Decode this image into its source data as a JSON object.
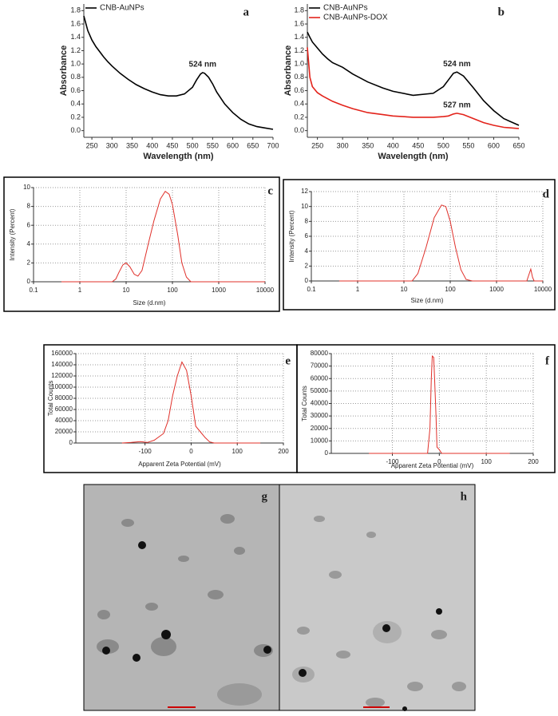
{
  "chart_data": [
    {
      "type": "line",
      "panel_label": "a",
      "xlabel": "Wavelength (nm)",
      "ylabel": "Absorbance",
      "grid": false,
      "log_scale": false,
      "legend": "upper left",
      "x": [
        230,
        240,
        250,
        260,
        270,
        280,
        290,
        300,
        320,
        340,
        360,
        380,
        400,
        420,
        440,
        460,
        480,
        500,
        510,
        520,
        525,
        530,
        540,
        550,
        560,
        580,
        600,
        620,
        640,
        660,
        680,
        700
      ],
      "series": [
        {
          "name": "CNB-AuNPs",
          "color": "#000000",
          "peak_label": "524 nm",
          "values": [
            1.72,
            1.5,
            1.36,
            1.26,
            1.18,
            1.1,
            1.03,
            0.97,
            0.86,
            0.77,
            0.69,
            0.63,
            0.58,
            0.54,
            0.52,
            0.52,
            0.55,
            0.65,
            0.76,
            0.85,
            0.87,
            0.86,
            0.8,
            0.7,
            0.58,
            0.4,
            0.27,
            0.17,
            0.1,
            0.06,
            0.04,
            0.02
          ]
        }
      ],
      "xlim": [
        230,
        700
      ],
      "xticks": [
        250,
        300,
        350,
        400,
        450,
        500,
        550,
        600,
        650,
        700
      ],
      "ylim": [
        -0.1,
        1.9
      ],
      "yticks": [
        {
          "value": 0,
          "label": "0.0"
        },
        0.2,
        0.4,
        0.6,
        0.8,
        {
          "value": 1,
          "label": "1.0"
        },
        1.2,
        1.4,
        1.6,
        1.8
      ]
    },
    {
      "type": "line",
      "panel_label": "b",
      "xlabel": "Wavelength (nm)",
      "ylabel": "Absorbance",
      "grid": false,
      "log_scale": false,
      "legend": "upper left",
      "x": [
        230,
        235,
        240,
        250,
        260,
        270,
        280,
        300,
        320,
        350,
        380,
        400,
        440,
        480,
        500,
        510,
        520,
        527,
        540,
        560,
        580,
        600,
        620,
        650
      ],
      "series": [
        {
          "name": "CNB-AuNPs",
          "color": "#000000",
          "peak_label": "524 nm",
          "values": [
            1.48,
            1.4,
            1.33,
            1.24,
            1.15,
            1.08,
            1.02,
            0.95,
            0.85,
            0.73,
            0.64,
            0.59,
            0.53,
            0.56,
            0.66,
            0.76,
            0.86,
            0.88,
            0.82,
            0.64,
            0.45,
            0.3,
            0.18,
            0.08
          ]
        },
        {
          "name": "CNB-AuNPs-DOX",
          "color": "#e3231b",
          "peak_label": "527 nm",
          "values": [
            1.25,
            0.8,
            0.66,
            0.57,
            0.52,
            0.48,
            0.44,
            0.38,
            0.33,
            0.27,
            0.24,
            0.22,
            0.2,
            0.2,
            0.21,
            0.22,
            0.25,
            0.26,
            0.24,
            0.18,
            0.12,
            0.08,
            0.05,
            0.03
          ]
        }
      ],
      "xlim": [
        230,
        650
      ],
      "xticks": [
        250,
        300,
        350,
        400,
        450,
        500,
        550,
        600,
        650
      ],
      "ylim": [
        -0.1,
        1.9
      ],
      "yticks": [
        {
          "value": 0,
          "label": "0.0"
        },
        0.2,
        0.4,
        0.6,
        0.8,
        {
          "value": 1,
          "label": "1.0"
        },
        1.2,
        1.4,
        1.6,
        1.8
      ]
    },
    {
      "type": "line",
      "panel_label": "c",
      "xlabel": "Size (d.nm)",
      "ylabel": "Intensity (Percent)",
      "grid": true,
      "log_scale": true,
      "x": [
        0.4,
        5,
        6,
        7,
        8.5,
        10,
        12,
        15,
        18,
        22,
        30,
        40,
        55,
        70,
        85,
        100,
        130,
        160,
        200,
        250,
        10000
      ],
      "series": [
        {
          "color": "#e0302a",
          "values": [
            0,
            0,
            0.3,
            1.0,
            1.8,
            2.0,
            1.6,
            0.8,
            0.6,
            1.2,
            4.0,
            6.5,
            8.8,
            9.6,
            9.3,
            8.2,
            5.0,
            2.0,
            0.5,
            0,
            0
          ]
        }
      ],
      "xlim": [
        0.1,
        10000
      ],
      "xticks": [
        0.1,
        1,
        10,
        100,
        1000,
        10000
      ],
      "ylim": [
        0,
        10
      ],
      "yticks": [
        0,
        2,
        4,
        6,
        8,
        10
      ]
    },
    {
      "type": "line",
      "panel_label": "d",
      "xlabel": "Size (d.nm)",
      "ylabel": "Intensity (Percent)",
      "grid": true,
      "log_scale": true,
      "x": [
        0.4,
        15,
        20,
        30,
        45,
        65,
        80,
        100,
        130,
        170,
        220,
        300,
        4500,
        5500,
        6000,
        6500,
        10000
      ],
      "series": [
        {
          "color": "#e0302a",
          "values": [
            0,
            0,
            1.0,
            4.5,
            8.5,
            10.2,
            10.0,
            8.0,
            4.5,
            1.5,
            0.2,
            0,
            0,
            1.6,
            0.5,
            0,
            0
          ]
        }
      ],
      "xlim": [
        0.1,
        10000
      ],
      "xticks": [
        0.1,
        1,
        10,
        100,
        1000,
        10000
      ],
      "ylim": [
        0,
        12
      ],
      "yticks": [
        0,
        2,
        4,
        6,
        8,
        10,
        12
      ]
    },
    {
      "type": "line",
      "panel_label": "e",
      "xlabel": "Apparent Zeta Potential (mV)",
      "ylabel": "Total Counts",
      "grid": true,
      "log_scale": false,
      "x": [
        -150,
        -130,
        -110,
        -95,
        -80,
        -60,
        -50,
        -40,
        -30,
        -20,
        -10,
        0,
        10,
        20,
        30,
        40,
        50,
        150
      ],
      "series": [
        {
          "color": "#e0302a",
          "values": [
            0,
            1000,
            2500,
            1000,
            5000,
            17000,
            40000,
            85000,
            120000,
            145000,
            130000,
            85000,
            30000,
            20000,
            10000,
            2000,
            0,
            0
          ]
        }
      ],
      "xlim": [
        -250,
        200
      ],
      "xticks": [
        -100,
        0,
        100,
        200
      ],
      "ylim": [
        0,
        160000
      ],
      "yticks": [
        0,
        20000,
        40000,
        60000,
        80000,
        100000,
        120000,
        140000,
        160000
      ]
    },
    {
      "type": "line",
      "panel_label": "f",
      "xlabel": "Apparent Zeta Potential (mV)",
      "ylabel": "Total Counts",
      "grid": true,
      "log_scale": false,
      "x": [
        -150,
        -25,
        -20,
        -17,
        -15,
        -12,
        -10,
        -7,
        -5,
        0,
        5,
        150
      ],
      "series": [
        {
          "color": "#e0302a",
          "values": [
            0,
            0,
            20000,
            60000,
            78000,
            77000,
            60000,
            30000,
            5000,
            3000,
            0,
            0
          ]
        }
      ],
      "xlim": [
        -230,
        200
      ],
      "xticks": [
        -100,
        0,
        100,
        200
      ],
      "ylim": [
        0,
        80000
      ],
      "yticks": [
        0,
        10000,
        20000,
        30000,
        40000,
        50000,
        60000,
        70000,
        80000
      ]
    }
  ],
  "images": [
    {
      "label": "g"
    },
    {
      "label": "h"
    }
  ]
}
